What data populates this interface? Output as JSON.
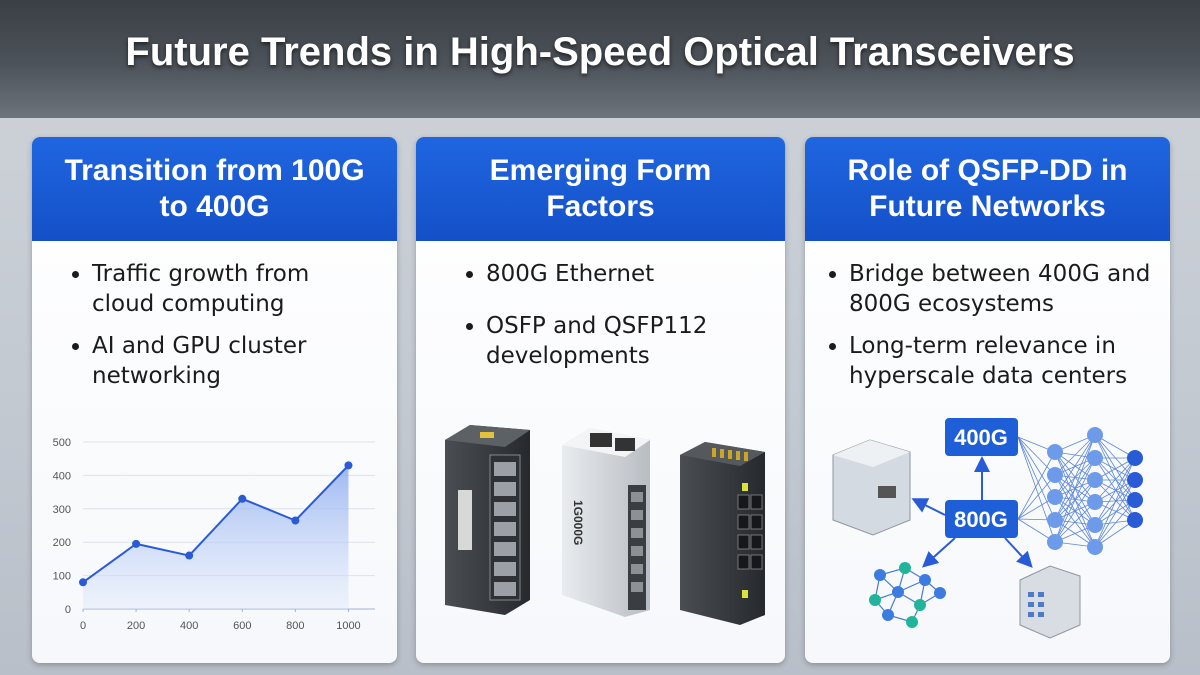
{
  "title": "Future Trends in High-Speed Optical Transceivers",
  "cards": [
    {
      "heading": "Transition from 100G to 400G",
      "bullets": [
        "Traffic growth from cloud computing",
        "AI and GPU cluster networking"
      ]
    },
    {
      "heading": "Emerging Form Factors",
      "bullets": [
        "800G Ethernet",
        "OSFP and QSFP112 developments"
      ]
    },
    {
      "heading": "Role of QSFP-DD in Future Networks",
      "bullets": [
        "Bridge between 400G and 800G ecosystems",
        "Long-term relevance in hyperscale data centers"
      ]
    }
  ],
  "module_label": "1G000G",
  "diagram": {
    "labels": [
      "400G",
      "800G"
    ]
  },
  "chart_data": {
    "type": "line",
    "x": [
      0,
      200,
      400,
      600,
      800,
      1000
    ],
    "values": [
      80,
      195,
      160,
      330,
      265,
      430
    ],
    "color": "#2a5bd7",
    "xlim": [
      0,
      1100
    ],
    "ylim": [
      0,
      500
    ],
    "xticks": [
      0,
      200,
      400,
      600,
      800,
      1000
    ],
    "yticks": [
      0,
      100,
      200,
      300,
      400,
      500
    ],
    "grid": true
  }
}
